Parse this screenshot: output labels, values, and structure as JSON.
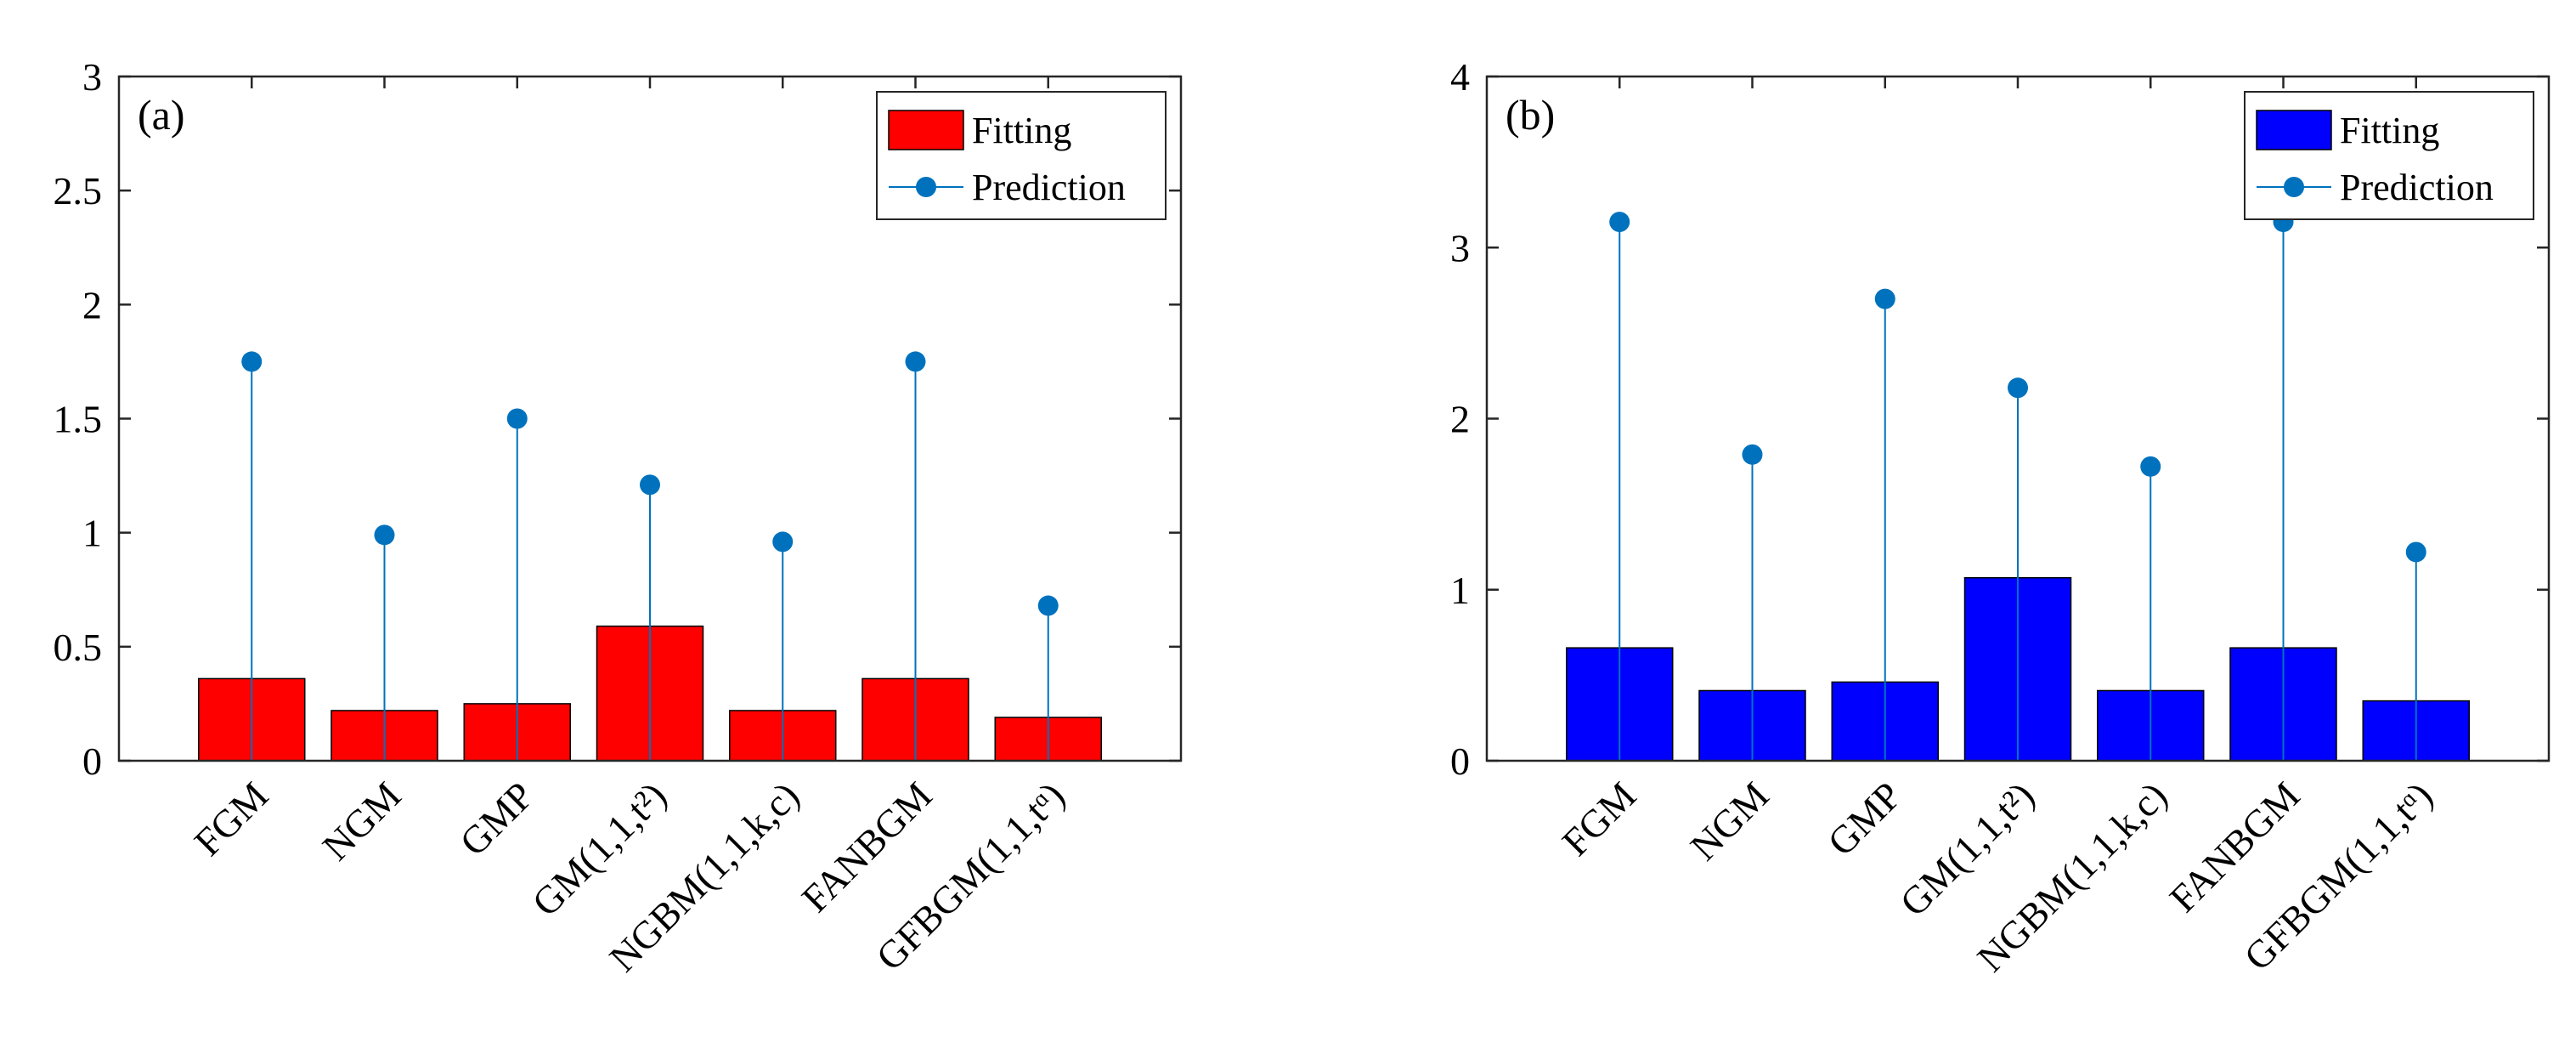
{
  "chart_data": [
    {
      "type": "bar",
      "panel_label": "(a)",
      "categories": [
        "FGM",
        "NGM",
        "GMP",
        "GM(1,1,t²)",
        "NGBM(1,1,k,c)",
        "FANBGM",
        "GFBGM(1,1,tᵅ)"
      ],
      "ylim": [
        0,
        3
      ],
      "yticks": [
        "0",
        "0.5",
        "1",
        "1.5",
        "2",
        "2.5",
        "3"
      ],
      "ytick_values": [
        0,
        0.5,
        1,
        1.5,
        2,
        2.5,
        3
      ],
      "legend_position": "top-right",
      "bar_color": "#FF0000",
      "series": [
        {
          "name": "Fitting",
          "style": "bar",
          "color": "#FF0000",
          "values": [
            0.36,
            0.22,
            0.25,
            0.59,
            0.22,
            0.36,
            0.19
          ]
        },
        {
          "name": "Prediction",
          "style": "stem",
          "color": "#0072BD",
          "values": [
            1.75,
            0.99,
            1.5,
            1.21,
            0.96,
            1.75,
            0.68
          ]
        }
      ]
    },
    {
      "type": "bar",
      "panel_label": "(b)",
      "categories": [
        "FGM",
        "NGM",
        "GMP",
        "GM(1,1,t²)",
        "NGBM(1,1,k,c)",
        "FANBGM",
        "GFBGM(1,1,tᵅ)"
      ],
      "ylim": [
        0,
        4
      ],
      "yticks": [
        "0",
        "1",
        "2",
        "3",
        "4"
      ],
      "ytick_values": [
        0,
        1,
        2,
        3,
        4
      ],
      "legend_position": "top-right",
      "bar_color": "#0000FF",
      "series": [
        {
          "name": "Fitting",
          "style": "bar",
          "color": "#0000FF",
          "values": [
            0.66,
            0.41,
            0.46,
            1.07,
            0.41,
            0.66,
            0.35
          ]
        },
        {
          "name": "Prediction",
          "style": "stem",
          "color": "#0072BD",
          "values": [
            3.15,
            1.79,
            2.7,
            2.18,
            1.72,
            3.15,
            1.22
          ]
        }
      ]
    }
  ]
}
